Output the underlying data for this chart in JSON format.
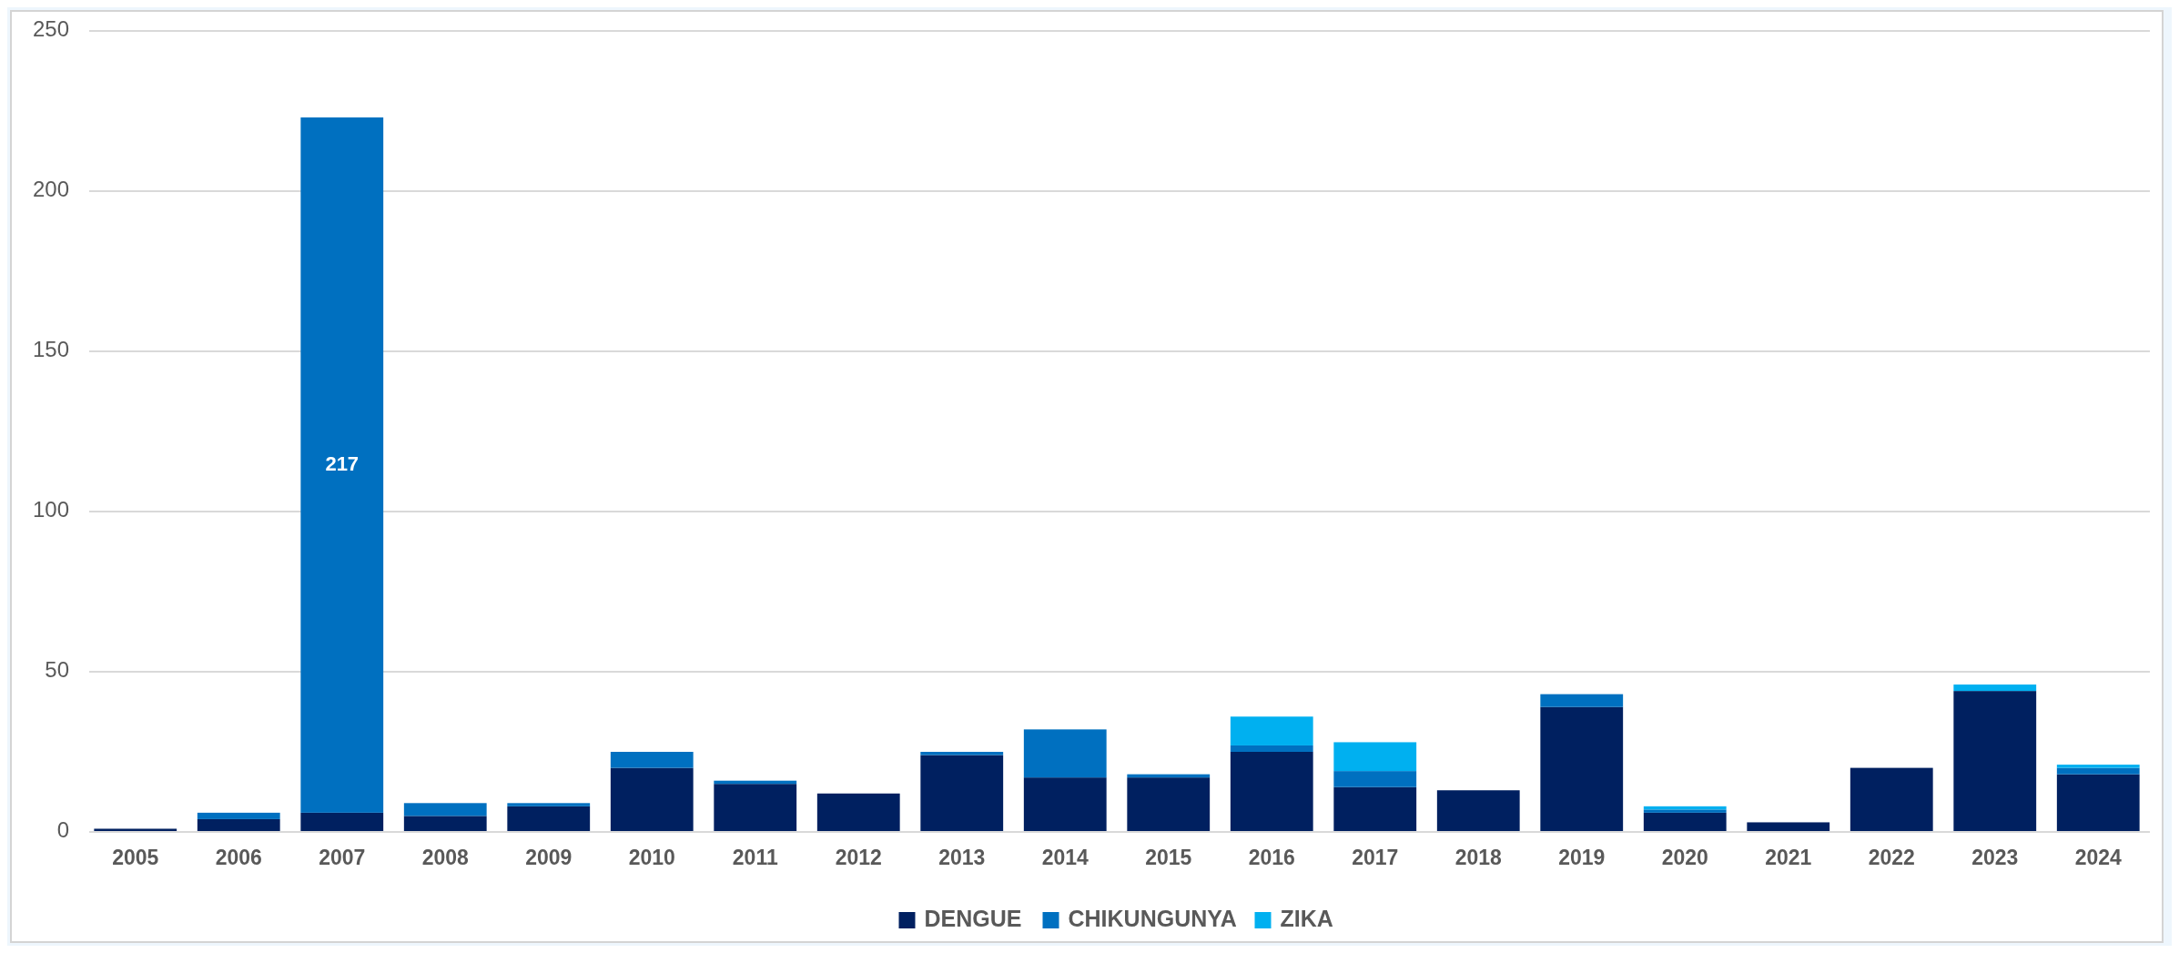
{
  "chart_data": {
    "type": "bar",
    "stacked": true,
    "categories": [
      "2005",
      "2006",
      "2007",
      "2008",
      "2009",
      "2010",
      "2011",
      "2012",
      "2013",
      "2014",
      "2015",
      "2016",
      "2017",
      "2018",
      "2019",
      "2020",
      "2021",
      "2022",
      "2023",
      "2024"
    ],
    "series": [
      {
        "name": "DENGUE",
        "color": "#002060",
        "values": [
          1,
          4,
          6,
          5,
          8,
          20,
          15,
          12,
          24,
          17,
          17,
          25,
          14,
          13,
          39,
          6,
          3,
          20,
          44,
          18
        ]
      },
      {
        "name": "CHIKUNGUNYA",
        "color": "#0070c0",
        "values": [
          0,
          2,
          217,
          4,
          1,
          5,
          1,
          0,
          1,
          15,
          1,
          2,
          5,
          0,
          4,
          1,
          0,
          0,
          0,
          2
        ],
        "value_labels": [
          null,
          null,
          "217",
          null,
          null,
          null,
          null,
          null,
          null,
          null,
          null,
          null,
          null,
          null,
          null,
          null,
          null,
          null,
          null,
          null
        ]
      },
      {
        "name": "ZIKA",
        "color": "#00b0f0",
        "values": [
          0,
          0,
          0,
          0,
          0,
          0,
          0,
          0,
          0,
          0,
          0,
          9,
          9,
          0,
          0,
          1,
          0,
          0,
          2,
          1
        ]
      }
    ],
    "ylim": [
      0,
      250
    ],
    "yticks": [
      0,
      50,
      100,
      150,
      200,
      250
    ],
    "grid": "y",
    "legend": "bottom"
  }
}
